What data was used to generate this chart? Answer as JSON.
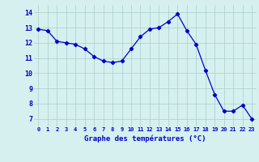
{
  "x": [
    0,
    1,
    2,
    3,
    4,
    5,
    6,
    7,
    8,
    9,
    10,
    11,
    12,
    13,
    14,
    15,
    16,
    17,
    18,
    19,
    20,
    21,
    22,
    23
  ],
  "y": [
    12.9,
    12.8,
    12.1,
    12.0,
    11.9,
    11.6,
    11.1,
    10.8,
    10.7,
    10.8,
    11.6,
    12.4,
    12.9,
    13.0,
    13.4,
    13.9,
    12.8,
    11.9,
    10.2,
    8.6,
    7.5,
    7.5,
    7.9,
    7.0
  ],
  "line_color": "#0000cc",
  "marker": "D",
  "marker_size": 2.2,
  "bg_color": "#d6f0f0",
  "grid_color": "#aacccc",
  "xlabel": "Graphe des températures (°C)",
  "xlabel_color": "#0000cc",
  "tick_color": "#0000cc",
  "ylim": [
    6.5,
    14.5
  ],
  "xlim": [
    -0.5,
    23.5
  ],
  "yticks": [
    7,
    8,
    9,
    10,
    11,
    12,
    13,
    14
  ],
  "xticks": [
    0,
    1,
    2,
    3,
    4,
    5,
    6,
    7,
    8,
    9,
    10,
    11,
    12,
    13,
    14,
    15,
    16,
    17,
    18,
    19,
    20,
    21,
    22,
    23
  ]
}
